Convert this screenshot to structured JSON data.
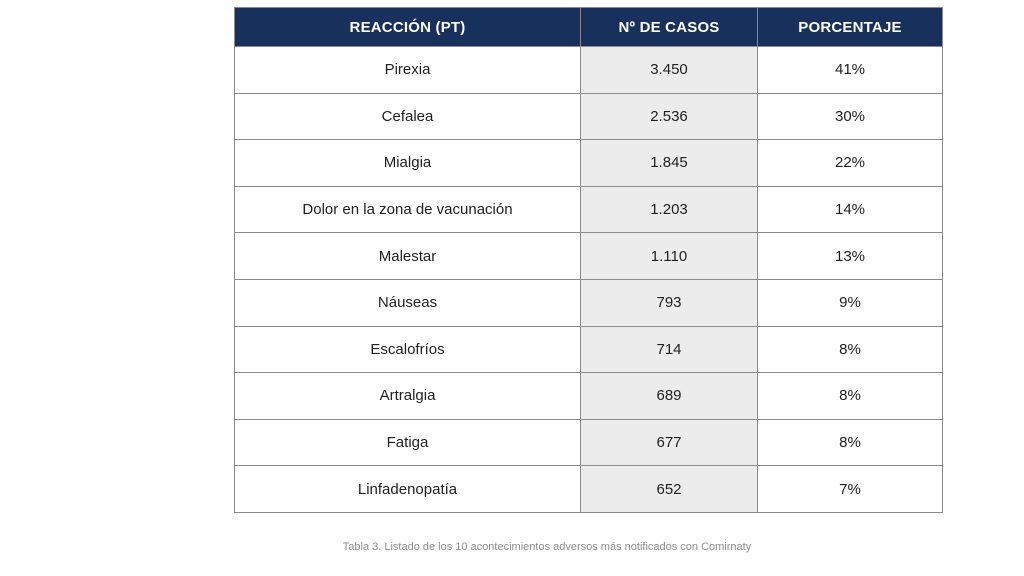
{
  "table": {
    "headers": {
      "reaction": "REACCIÓN (PT)",
      "cases": "Nº DE CASOS",
      "percent": "PORCENTAJE"
    },
    "rows": [
      {
        "reaction": "Pirexia",
        "cases": "3.450",
        "percent": "41%"
      },
      {
        "reaction": "Cefalea",
        "cases": "2.536",
        "percent": "30%"
      },
      {
        "reaction": "Mialgia",
        "cases": "1.845",
        "percent": "22%"
      },
      {
        "reaction": "Dolor en la zona de vacunación",
        "cases": "1.203",
        "percent": "14%"
      },
      {
        "reaction": "Malestar",
        "cases": "1.110",
        "percent": "13%"
      },
      {
        "reaction": "Náuseas",
        "cases": "793",
        "percent": "9%"
      },
      {
        "reaction": "Escalofríos",
        "cases": "714",
        "percent": "8%"
      },
      {
        "reaction": "Artralgia",
        "cases": "689",
        "percent": "8%"
      },
      {
        "reaction": "Fatiga",
        "cases": "677",
        "percent": "8%"
      },
      {
        "reaction": "Linfadenopatía",
        "cases": "652",
        "percent": "7%"
      }
    ]
  },
  "caption": "Tabla 3. Listado de los 10 acontecimientos adversos más notificados con Comirnaty",
  "colors": {
    "header_bg": "#17305c",
    "header_text": "#ffffff",
    "cases_column_bg": "#ececec",
    "border": "#8a8a8a",
    "caption_text": "#8c8c8c"
  }
}
